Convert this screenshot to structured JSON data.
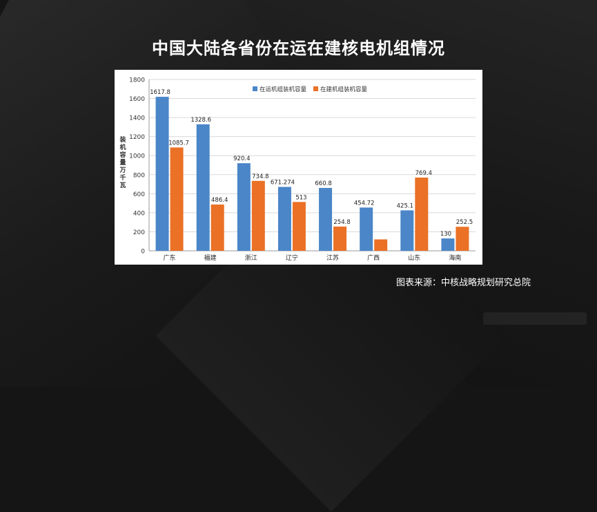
{
  "title": "中国大陆各省份在运在建核电机组情况",
  "source": "图表来源：中核战略规划研究总院",
  "colors": {
    "operating": "#4a86c8",
    "construction": "#ea7126",
    "background": "#151515"
  },
  "chart_data": {
    "type": "bar",
    "title": "",
    "xlabel": "",
    "ylabel": "装机容量万千瓦",
    "ylim": [
      0,
      1800
    ],
    "yticks": [
      0,
      200,
      400,
      600,
      800,
      1000,
      1200,
      1400,
      1600,
      1800
    ],
    "grid": true,
    "legend_position": "top-center",
    "categories": [
      "广东",
      "福建",
      "浙江",
      "辽宁",
      "江苏",
      "广西",
      "山东",
      "海南"
    ],
    "series": [
      {
        "name": "在运机组装机容量",
        "values": [
          1617.8,
          1328.6,
          920.4,
          671.274,
          660.8,
          454.72,
          425.1,
          130
        ],
        "labels": [
          "1617.8",
          "1328.6",
          "920.4",
          "671.274",
          "660.8",
          "454.72",
          "425.1",
          "130"
        ]
      },
      {
        "name": "在建机组装机容量",
        "values": [
          1085.7,
          486.4,
          734.8,
          513,
          254.8,
          120,
          769.4,
          252.5
        ],
        "labels": [
          "1085.7",
          "486.4",
          "734.8",
          "513",
          "254.8",
          "",
          "769.4",
          "252.5"
        ]
      }
    ]
  }
}
